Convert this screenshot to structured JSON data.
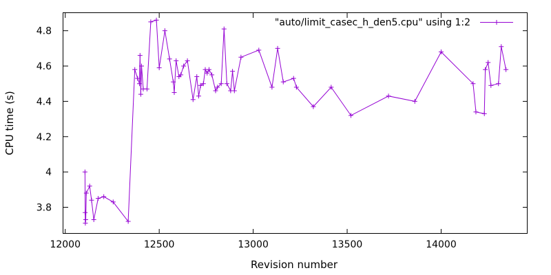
{
  "chart_data": {
    "type": "line",
    "title": "",
    "xlabel": "Revision number",
    "ylabel": "CPU time (s)",
    "xlim": [
      11990,
      14460
    ],
    "ylim": [
      3.65,
      4.9
    ],
    "x_ticks": [
      12000,
      12500,
      13000,
      13500,
      14000
    ],
    "x_tick_labels": [
      "12000",
      "12500",
      "13000",
      "13500",
      "14000"
    ],
    "y_ticks": [
      3.8,
      4.0,
      4.2,
      4.4,
      4.6,
      4.8
    ],
    "y_tick_labels": [
      "3.8",
      "4",
      "4.2",
      "4.4",
      "4.6",
      "4.8"
    ],
    "grid": false,
    "legend_position": "top-right",
    "series": [
      {
        "name": "\"auto/limit_casec_h_den5.cpu\" using 1:2",
        "color": "#9400d3",
        "marker": "plus",
        "points": [
          [
            12105,
            4.0
          ],
          [
            12106,
            3.77
          ],
          [
            12107,
            3.71
          ],
          [
            12109,
            3.73
          ],
          [
            12112,
            3.88
          ],
          [
            12130,
            3.92
          ],
          [
            12140,
            3.84
          ],
          [
            12152,
            3.73
          ],
          [
            12175,
            3.85
          ],
          [
            12205,
            3.86
          ],
          [
            12255,
            3.83
          ],
          [
            12335,
            3.72
          ],
          [
            12370,
            4.58
          ],
          [
            12385,
            4.53
          ],
          [
            12395,
            4.5
          ],
          [
            12398,
            4.66
          ],
          [
            12402,
            4.44
          ],
          [
            12406,
            4.6
          ],
          [
            12415,
            4.47
          ],
          [
            12435,
            4.47
          ],
          [
            12455,
            4.85
          ],
          [
            12485,
            4.86
          ],
          [
            12500,
            4.59
          ],
          [
            12530,
            4.8
          ],
          [
            12555,
            4.64
          ],
          [
            12575,
            4.51
          ],
          [
            12580,
            4.45
          ],
          [
            12590,
            4.63
          ],
          [
            12605,
            4.54
          ],
          [
            12615,
            4.55
          ],
          [
            12630,
            4.6
          ],
          [
            12650,
            4.63
          ],
          [
            12680,
            4.41
          ],
          [
            12700,
            4.54
          ],
          [
            12710,
            4.43
          ],
          [
            12720,
            4.49
          ],
          [
            12735,
            4.5
          ],
          [
            12745,
            4.58
          ],
          [
            12755,
            4.56
          ],
          [
            12765,
            4.58
          ],
          [
            12780,
            4.55
          ],
          [
            12800,
            4.46
          ],
          [
            12810,
            4.48
          ],
          [
            12830,
            4.5
          ],
          [
            12845,
            4.81
          ],
          [
            12860,
            4.5
          ],
          [
            12880,
            4.46
          ],
          [
            12890,
            4.57
          ],
          [
            12900,
            4.46
          ],
          [
            12935,
            4.65
          ],
          [
            13030,
            4.69
          ],
          [
            13100,
            4.48
          ],
          [
            13130,
            4.7
          ],
          [
            13160,
            4.51
          ],
          [
            13215,
            4.53
          ],
          [
            13230,
            4.48
          ],
          [
            13320,
            4.37
          ],
          [
            13415,
            4.48
          ],
          [
            13520,
            4.32
          ],
          [
            13720,
            4.43
          ],
          [
            13860,
            4.4
          ],
          [
            14000,
            4.68
          ],
          [
            14170,
            4.5
          ],
          [
            14185,
            4.34
          ],
          [
            14230,
            4.33
          ],
          [
            14235,
            4.58
          ],
          [
            14250,
            4.62
          ],
          [
            14265,
            4.49
          ],
          [
            14305,
            4.5
          ],
          [
            14320,
            4.71
          ],
          [
            14345,
            4.58
          ]
        ]
      }
    ]
  }
}
